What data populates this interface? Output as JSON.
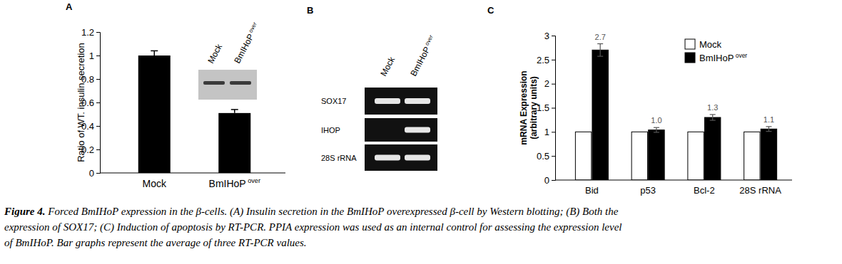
{
  "chart_data": [
    {
      "type": "bar",
      "title": "A",
      "categories": [
        "Mock",
        "BmIHoP over"
      ],
      "values": [
        1.0,
        0.51
      ],
      "errors": [
        0.04,
        0.03
      ],
      "color": "#000000",
      "ylabel": "Ratio of WT. insulin secretion",
      "ylim": [
        0,
        1.2
      ],
      "yticks": [
        0,
        0.2,
        0.4,
        0.6,
        0.8,
        1,
        1.2
      ],
      "annotations": [
        "Mock",
        "BmIHoP over"
      ]
    },
    {
      "type": "bar",
      "title": "C",
      "categories": [
        "Bid",
        "p53",
        "Bcl-2",
        "28S rRNA"
      ],
      "series": [
        {
          "name": "Mock",
          "color": "#ffffff",
          "values": [
            1,
            1,
            1,
            1
          ]
        },
        {
          "name": "BmIHoP over",
          "color": "#000000",
          "values": [
            2.7,
            1.04,
            1.3,
            1.06
          ],
          "errors": [
            0.13,
            0.05,
            0.06,
            0.05
          ],
          "value_labels": [
            "2.7",
            "1.0",
            "1.3",
            "1.1"
          ]
        }
      ],
      "ylabel": [
        "mRNA Expression",
        "(arbitrary units)"
      ],
      "ylim": [
        0,
        3
      ],
      "yticks": [
        0,
        0.5,
        1,
        1.5,
        2,
        2.5,
        3
      ],
      "legend": "top-right"
    }
  ],
  "panel_b": {
    "title": "B",
    "lanes": [
      "Mock",
      "BmIHoP over"
    ],
    "rows": [
      "SOX17",
      "IHOP",
      "28S rRNA"
    ],
    "bands": [
      [
        true,
        true
      ],
      [
        false,
        true
      ],
      [
        true,
        true
      ]
    ]
  },
  "caption": {
    "label": "Figure 4.",
    "lines": [
      "Forced BmIHoP expression in the β-cells. (A) Insulin secretion in the BmIHoP overexpressed β-cell by Western blotting; (B) Both the",
      "expression of SOX17; (C) Induction of apoptosis by RT-PCR. PPIA expression was used as an internal control for assessing the expression level",
      "of BmIHoP. Bar graphs represent the average of three RT-PCR values."
    ]
  }
}
